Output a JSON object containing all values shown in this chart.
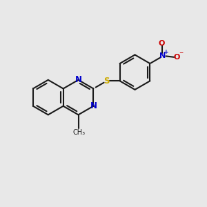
{
  "bg_color": "#e8e8e8",
  "bond_color": "#1a1a1a",
  "nitrogen_color": "#0000cc",
  "sulfur_color": "#ccaa00",
  "oxygen_color": "#cc0000",
  "bond_width": 1.5,
  "font_size_atom": 8.5,
  "figsize": [
    3.0,
    3.0
  ],
  "dpi": 100,
  "xlim": [
    0,
    10
  ],
  "ylim": [
    0,
    10
  ]
}
